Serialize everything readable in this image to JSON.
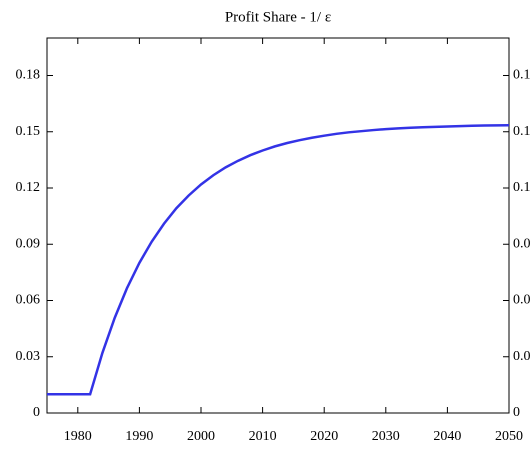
{
  "chart_data": {
    "type": "line",
    "title": "Profit Share - 1/  ε",
    "x": [
      1975,
      1982,
      1984,
      1986,
      1988,
      1990,
      1992,
      1994,
      1996,
      1998,
      2000,
      2002,
      2004,
      2006,
      2008,
      2010,
      2012,
      2014,
      2016,
      2018,
      2020,
      2022,
      2024,
      2026,
      2028,
      2030,
      2032,
      2034,
      2036,
      2038,
      2040,
      2042,
      2044,
      2046,
      2048,
      2050
    ],
    "series": [
      {
        "color": "#3333e6",
        "values": [
          0.01,
          0.01,
          0.0321,
          0.0508,
          0.0667,
          0.0801,
          0.0914,
          0.101,
          0.1092,
          0.116,
          0.1219,
          0.1268,
          0.131,
          0.1345,
          0.1375,
          0.14,
          0.1422,
          0.144,
          0.1455,
          0.1468,
          0.1479,
          0.1489,
          0.1497,
          0.1503,
          0.1509,
          0.1514,
          0.1518,
          0.1521,
          0.1524,
          0.1526,
          0.1528,
          0.153,
          0.1532,
          0.1533,
          0.1534,
          0.1535
        ]
      }
    ],
    "xlim": [
      1975,
      2050
    ],
    "xticks": [
      1980,
      1990,
      2000,
      2010,
      2020,
      2030,
      2040,
      2050
    ],
    "ylim": [
      0,
      0.2
    ],
    "yticks": [
      0,
      0.03,
      0.06,
      0.09,
      0.12,
      0.15,
      0.18
    ]
  }
}
